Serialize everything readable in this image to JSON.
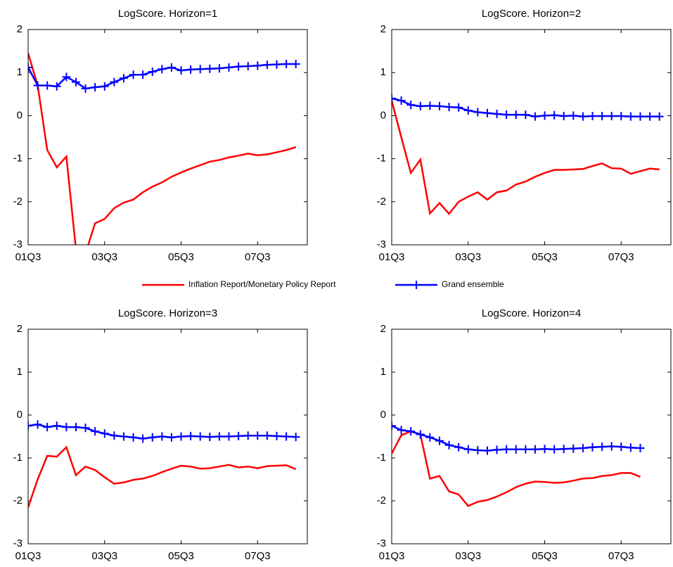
{
  "chart_data": [
    {
      "type": "line",
      "title": "LogScore. Horizon=1",
      "x": [
        0,
        1,
        2,
        3,
        4,
        5,
        6,
        7,
        8,
        9,
        10,
        11,
        12,
        13,
        14,
        15,
        16,
        17,
        18,
        19,
        20,
        21,
        22,
        23,
        24,
        25,
        26,
        27,
        28
      ],
      "xlim": [
        0,
        29.2
      ],
      "xticks": [
        {
          "value": 0,
          "label": "01Q3"
        },
        {
          "value": 8,
          "label": "03Q3"
        },
        {
          "value": 16,
          "label": "05Q3"
        },
        {
          "value": 24,
          "label": "07Q3"
        }
      ],
      "ylim": [
        -3,
        2
      ],
      "yticks": [
        -3,
        -2,
        -1,
        0,
        1,
        2
      ],
      "series": [
        {
          "name": "Inflation Report/Monetary Policy Report",
          "color": "#ff0000",
          "values": [
            1.45,
            0.7,
            -0.8,
            -1.2,
            -0.95,
            -3.1,
            -3.2,
            -2.5,
            -2.4,
            -2.15,
            -2.02,
            -1.95,
            -1.78,
            -1.65,
            -1.55,
            -1.42,
            -1.32,
            -1.23,
            -1.15,
            -1.07,
            -1.03,
            -0.97,
            -0.93,
            -0.88,
            -0.92,
            -0.9,
            -0.85,
            -0.8,
            -0.73
          ]
        },
        {
          "name": "Grand ensemble",
          "color": "#0000ff",
          "marker": "+",
          "values": [
            1.12,
            0.7,
            0.7,
            0.68,
            0.9,
            0.78,
            0.63,
            0.66,
            0.68,
            0.78,
            0.87,
            0.95,
            0.95,
            1.02,
            1.08,
            1.12,
            1.05,
            1.07,
            1.08,
            1.09,
            1.1,
            1.12,
            1.14,
            1.15,
            1.16,
            1.18,
            1.19,
            1.2,
            1.2
          ]
        }
      ]
    },
    {
      "type": "line",
      "title": "LogScore. Horizon=2",
      "x": [
        0,
        1,
        2,
        3,
        4,
        5,
        6,
        7,
        8,
        9,
        10,
        11,
        12,
        13,
        14,
        15,
        16,
        17,
        18,
        19,
        20,
        21,
        22,
        23,
        24,
        25,
        26,
        27,
        28
      ],
      "xlim": [
        0,
        29.2
      ],
      "xticks": [
        {
          "value": 0,
          "label": "01Q3"
        },
        {
          "value": 8,
          "label": "03Q3"
        },
        {
          "value": 16,
          "label": "05Q3"
        },
        {
          "value": 24,
          "label": "07Q3"
        }
      ],
      "ylim": [
        -3,
        2
      ],
      "yticks": [
        -3,
        -2,
        -1,
        0,
        1,
        2
      ],
      "series": [
        {
          "color": "#ff0000",
          "values": [
            0.35,
            -0.5,
            -1.33,
            -1.02,
            -2.27,
            -2.03,
            -2.28,
            -2.0,
            -1.88,
            -1.78,
            -1.95,
            -1.78,
            -1.74,
            -1.6,
            -1.53,
            -1.42,
            -1.33,
            -1.26,
            -1.26,
            -1.25,
            -1.24,
            -1.17,
            -1.11,
            -1.22,
            -1.23,
            -1.35,
            -1.29,
            -1.23,
            -1.25
          ]
        },
        {
          "color": "#0000ff",
          "marker": "+",
          "values": [
            0.4,
            0.35,
            0.25,
            0.22,
            0.23,
            0.22,
            0.2,
            0.19,
            0.12,
            0.08,
            0.06,
            0.04,
            0.02,
            0.02,
            0.02,
            -0.02,
            0.0,
            0.01,
            -0.01,
            0.0,
            -0.02,
            -0.01,
            -0.01,
            -0.01,
            -0.01,
            -0.02,
            -0.02,
            -0.02,
            -0.02
          ]
        }
      ]
    },
    {
      "type": "line",
      "title": "LogScore. Horizon=3",
      "x": [
        0,
        1,
        2,
        3,
        4,
        5,
        6,
        7,
        8,
        9,
        10,
        11,
        12,
        13,
        14,
        15,
        16,
        17,
        18,
        19,
        20,
        21,
        22,
        23,
        24,
        25,
        26,
        27,
        28
      ],
      "xlim": [
        0,
        29.2
      ],
      "xticks": [
        {
          "value": 0,
          "label": "01Q3"
        },
        {
          "value": 8,
          "label": "03Q3"
        },
        {
          "value": 16,
          "label": "05Q3"
        },
        {
          "value": 24,
          "label": "07Q3"
        }
      ],
      "ylim": [
        -3,
        2
      ],
      "yticks": [
        -3,
        -2,
        -1,
        0,
        1,
        2
      ],
      "series": [
        {
          "color": "#ff0000",
          "values": [
            -2.15,
            -1.5,
            -0.95,
            -0.97,
            -0.75,
            -1.4,
            -1.2,
            -1.28,
            -1.45,
            -1.6,
            -1.57,
            -1.51,
            -1.48,
            -1.42,
            -1.33,
            -1.25,
            -1.18,
            -1.2,
            -1.25,
            -1.24,
            -1.2,
            -1.16,
            -1.22,
            -1.2,
            -1.24,
            -1.19,
            -1.18,
            -1.17,
            -1.26
          ]
        },
        {
          "color": "#0000ff",
          "marker": "+",
          "values": [
            -0.25,
            -0.22,
            -0.28,
            -0.25,
            -0.28,
            -0.28,
            -0.3,
            -0.38,
            -0.43,
            -0.48,
            -0.5,
            -0.52,
            -0.55,
            -0.52,
            -0.5,
            -0.52,
            -0.5,
            -0.49,
            -0.5,
            -0.51,
            -0.5,
            -0.5,
            -0.49,
            -0.48,
            -0.48,
            -0.48,
            -0.49,
            -0.5,
            -0.51
          ]
        }
      ]
    },
    {
      "type": "line",
      "title": "LogScore. Horizon=4",
      "x": [
        0,
        1,
        2,
        3,
        4,
        5,
        6,
        7,
        8,
        9,
        10,
        11,
        12,
        13,
        14,
        15,
        16,
        17,
        18,
        19,
        20,
        21,
        22,
        23,
        24,
        25,
        26
      ],
      "xlim": [
        0,
        29.2
      ],
      "xticks": [
        {
          "value": 0,
          "label": "01Q3"
        },
        {
          "value": 8,
          "label": "03Q3"
        },
        {
          "value": 16,
          "label": "05Q3"
        },
        {
          "value": 24,
          "label": "07Q3"
        }
      ],
      "ylim": [
        -3,
        2
      ],
      "yticks": [
        -3,
        -2,
        -1,
        0,
        1,
        2
      ],
      "series": [
        {
          "color": "#ff0000",
          "values": [
            -0.9,
            -0.47,
            -0.38,
            -0.45,
            -1.48,
            -1.42,
            -1.78,
            -1.85,
            -2.12,
            -2.02,
            -1.98,
            -1.9,
            -1.8,
            -1.68,
            -1.6,
            -1.55,
            -1.56,
            -1.58,
            -1.57,
            -1.53,
            -1.48,
            -1.47,
            -1.42,
            -1.4,
            -1.35,
            -1.35,
            -1.44
          ]
        },
        {
          "color": "#0000ff",
          "marker": "+",
          "values": [
            -0.25,
            -0.35,
            -0.38,
            -0.45,
            -0.52,
            -0.6,
            -0.7,
            -0.75,
            -0.8,
            -0.82,
            -0.83,
            -0.81,
            -0.8,
            -0.8,
            -0.8,
            -0.8,
            -0.79,
            -0.8,
            -0.79,
            -0.78,
            -0.77,
            -0.75,
            -0.74,
            -0.73,
            -0.74,
            -0.76,
            -0.77
          ]
        }
      ]
    }
  ]
}
